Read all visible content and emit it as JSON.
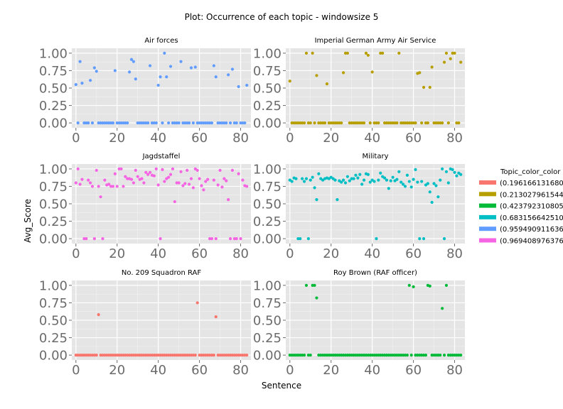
{
  "chart_data": {
    "type": "scatter",
    "title": "Plot: Occurrence of each topic - windowsize 5",
    "xlabel": "Sentence",
    "ylabel": "Avg_Score",
    "xlim": [
      -2,
      85
    ],
    "ylim": [
      -0.07,
      1.07
    ],
    "xticks": [
      "0",
      "20",
      "40",
      "60",
      "80"
    ],
    "yticks": [
      "0.00",
      "0.25",
      "0.50",
      "0.75",
      "1.00"
    ],
    "legend": {
      "title": "Topic_color_color",
      "entries": [
        {
          "label": "(0.196166131680",
          "color": "#f8766d"
        },
        {
          "label": "(0.213027961544",
          "color": "#b79f00"
        },
        {
          "label": "(0.423792310805",
          "color": "#00ba38"
        },
        {
          "label": "(0.683156642510",
          "color": "#00bfc4"
        },
        {
          "label": "(0.959490911636",
          "color": "#619cff"
        },
        {
          "label": "(0.969408976376",
          "color": "#f564e3"
        }
      ]
    },
    "panels": [
      {
        "title": "Air forces",
        "color": "#619cff",
        "x": [
          0,
          1,
          2,
          3,
          4,
          5,
          6,
          7,
          8,
          9,
          10,
          11,
          12,
          13,
          14,
          15,
          16,
          17,
          18,
          19,
          20,
          21,
          22,
          23,
          24,
          25,
          26,
          27,
          28,
          29,
          30,
          31,
          32,
          33,
          34,
          35,
          36,
          37,
          38,
          39,
          40,
          41,
          42,
          43,
          44,
          45,
          46,
          47,
          48,
          49,
          50,
          51,
          52,
          53,
          54,
          55,
          56,
          57,
          58,
          59,
          60,
          61,
          62,
          63,
          64,
          65,
          66,
          67,
          68,
          69,
          70,
          71,
          72,
          73,
          74,
          75,
          76,
          77,
          78,
          79,
          80,
          81,
          82,
          83
        ],
        "y": [
          0.55,
          0,
          0.88,
          0.57,
          0,
          0,
          0,
          0.61,
          0,
          0.79,
          0.74,
          0,
          0,
          0,
          0,
          0,
          0,
          0,
          0,
          0.75,
          0,
          0,
          0,
          0,
          0,
          0,
          0.73,
          0.91,
          0.88,
          0.63,
          0,
          0,
          0,
          0,
          0,
          0,
          0.82,
          0,
          0,
          0,
          0.54,
          0.66,
          0,
          1.0,
          0.66,
          0,
          0.81,
          0,
          0,
          0,
          0,
          0.88,
          0,
          0,
          0,
          0,
          0.79,
          0,
          0.8,
          0,
          0,
          0,
          0,
          0,
          0,
          0,
          0,
          0.82,
          0.66,
          0,
          0,
          0,
          0,
          0,
          0.69,
          0,
          0.77,
          0,
          0,
          0.52,
          0,
          0,
          0,
          0.54
        ]
      },
      {
        "title": "Imperial German Army Air Service",
        "color": "#b79f00",
        "x": [
          0,
          1,
          2,
          3,
          4,
          5,
          6,
          7,
          8,
          9,
          10,
          11,
          12,
          13,
          14,
          15,
          16,
          17,
          18,
          19,
          20,
          21,
          22,
          23,
          24,
          25,
          26,
          27,
          28,
          29,
          30,
          31,
          32,
          33,
          34,
          35,
          36,
          37,
          38,
          39,
          40,
          41,
          42,
          43,
          44,
          45,
          46,
          47,
          48,
          49,
          50,
          51,
          52,
          53,
          54,
          55,
          56,
          57,
          58,
          59,
          60,
          61,
          62,
          63,
          64,
          65,
          66,
          67,
          68,
          69,
          70,
          71,
          72,
          73,
          74,
          75,
          76,
          77,
          78,
          79,
          80,
          81,
          82,
          83
        ],
        "y": [
          0.6,
          0,
          0,
          0,
          0,
          0,
          0,
          0,
          1.0,
          0,
          0,
          1.0,
          0,
          0.68,
          0,
          0,
          0,
          0,
          0.56,
          0,
          0,
          0,
          0,
          0,
          0,
          0,
          0.72,
          1.0,
          1.0,
          0,
          0,
          0,
          0,
          0,
          0,
          0,
          0,
          1.0,
          0.97,
          0,
          0.73,
          0,
          0,
          0,
          1.0,
          1.0,
          0,
          0,
          0,
          0,
          0,
          0,
          0,
          1.0,
          0,
          0,
          0,
          0,
          0,
          0,
          0,
          0,
          0.71,
          0.72,
          0,
          0.51,
          0,
          0,
          0.51,
          0.8,
          0,
          0,
          0,
          0,
          0,
          0.87,
          1.0,
          0,
          0.92,
          1.0,
          1.0,
          0,
          0,
          0.87
        ]
      },
      {
        "title": "Jagdstaffel",
        "color": "#f564e3",
        "x": [
          0,
          1,
          2,
          3,
          4,
          5,
          6,
          7,
          8,
          9,
          10,
          11,
          12,
          13,
          14,
          15,
          16,
          17,
          18,
          19,
          20,
          21,
          22,
          23,
          24,
          25,
          26,
          27,
          28,
          29,
          30,
          31,
          32,
          33,
          34,
          35,
          36,
          37,
          38,
          39,
          40,
          41,
          42,
          43,
          44,
          45,
          46,
          47,
          48,
          49,
          50,
          51,
          52,
          53,
          54,
          55,
          56,
          57,
          58,
          59,
          60,
          61,
          62,
          63,
          64,
          65,
          66,
          67,
          68,
          69,
          70,
          71,
          72,
          73,
          74,
          75,
          76,
          77,
          78,
          79,
          80,
          81,
          82,
          83
        ],
        "y": [
          0.8,
          1.0,
          0.78,
          0.85,
          0,
          0,
          0.84,
          0.8,
          0.75,
          0,
          0.98,
          0.75,
          0.6,
          0,
          0.84,
          0.77,
          0.78,
          0.75,
          0.75,
          0.93,
          0.75,
          1.0,
          1.0,
          0.75,
          0.89,
          0.86,
          0.86,
          0.85,
          0.8,
          0.98,
          0.89,
          0.85,
          0.86,
          0.8,
          0.95,
          0.92,
          0.95,
          0.91,
          0.9,
          1.0,
          0.77,
          0,
          0.99,
          0.82,
          0.86,
          0.88,
          0.92,
          1.0,
          0.53,
          0.8,
          0.8,
          0.96,
          0.76,
          0.79,
          0.98,
          0.78,
          0.86,
          0.73,
          1.0,
          0.98,
          0.86,
          0.76,
          0.7,
          0.82,
          0.85,
          0,
          0,
          0.84,
          0,
          0.77,
          0.98,
          0.74,
          0.86,
          0.83,
          0.56,
          0,
          0.98,
          0,
          0,
          0.93,
          0,
          0.84,
          0.76,
          0.75
        ]
      },
      {
        "title": "Military",
        "color": "#00bfc4",
        "x": [
          0,
          1,
          2,
          3,
          4,
          5,
          6,
          7,
          8,
          9,
          10,
          11,
          12,
          13,
          14,
          15,
          16,
          17,
          18,
          19,
          20,
          21,
          22,
          23,
          24,
          25,
          26,
          27,
          28,
          29,
          30,
          31,
          32,
          33,
          34,
          35,
          36,
          37,
          38,
          39,
          40,
          41,
          42,
          43,
          44,
          45,
          46,
          47,
          48,
          49,
          50,
          51,
          52,
          53,
          54,
          55,
          56,
          57,
          58,
          59,
          60,
          61,
          62,
          63,
          64,
          65,
          66,
          67,
          68,
          69,
          70,
          71,
          72,
          73,
          74,
          75,
          76,
          77,
          78,
          79,
          80,
          81,
          82,
          83
        ],
        "y": [
          0.84,
          0.82,
          0.87,
          0.86,
          0,
          0,
          0.86,
          0.82,
          0.86,
          0,
          0.84,
          0.88,
          0.73,
          0.56,
          0.93,
          0.86,
          0.84,
          0.86,
          0.87,
          0.86,
          0.88,
          0.86,
          0.84,
          0.56,
          0.83,
          0.81,
          0.84,
          0.8,
          0.89,
          0.83,
          0.86,
          0.86,
          0.91,
          0.87,
          0.92,
          0.78,
          0.84,
          0.93,
          0.92,
          0.81,
          0.84,
          0.82,
          0,
          0.84,
          0.94,
          0.89,
          0.87,
          0.84,
          0.72,
          0.83,
          0.88,
          0.83,
          0.85,
          0.96,
          0.81,
          0.78,
          0.75,
          0.91,
          0.82,
          0.74,
          0.85,
          0.99,
          0.81,
          0,
          0.82,
          0,
          0.77,
          0.79,
          0.67,
          0.52,
          0.79,
          0.76,
          0.6,
          0.84,
          1.0,
          0,
          0.96,
          0.8,
          1.0,
          0.99,
          0.95,
          0.9,
          0.94,
          0.92
        ]
      },
      {
        "title": "No. 209 Squadron RAF",
        "color": "#f8766d",
        "x": [
          0,
          1,
          2,
          3,
          4,
          5,
          6,
          7,
          8,
          9,
          10,
          11,
          12,
          13,
          14,
          15,
          16,
          17,
          18,
          19,
          20,
          21,
          22,
          23,
          24,
          25,
          26,
          27,
          28,
          29,
          30,
          31,
          32,
          33,
          34,
          35,
          36,
          37,
          38,
          39,
          40,
          41,
          42,
          43,
          44,
          45,
          46,
          47,
          48,
          49,
          50,
          51,
          52,
          53,
          54,
          55,
          56,
          57,
          58,
          59,
          60,
          61,
          62,
          63,
          64,
          65,
          66,
          67,
          68,
          69,
          70,
          71,
          72,
          73,
          74,
          75,
          76,
          77,
          78,
          79,
          80,
          81,
          82,
          83
        ],
        "y": [
          0,
          0,
          0,
          0,
          0,
          0,
          0,
          0,
          0,
          0,
          0,
          0.58,
          0,
          0,
          0,
          0,
          0,
          0,
          0,
          0,
          0,
          0,
          0,
          0,
          0,
          0,
          0,
          0,
          0,
          0,
          0,
          0,
          0,
          0,
          0,
          0,
          0,
          0,
          0,
          0,
          0,
          0,
          0,
          0,
          0,
          0,
          0,
          0,
          0,
          0,
          0,
          0,
          0,
          0,
          0,
          0,
          0,
          0,
          0,
          0.75,
          0,
          0,
          0,
          0,
          0,
          0,
          0,
          0,
          0.55,
          0,
          0,
          0,
          0,
          0,
          0,
          0,
          0,
          0,
          0,
          0,
          0,
          0,
          0,
          0
        ]
      },
      {
        "title": "Roy Brown (RAF officer)",
        "color": "#00ba38",
        "x": [
          0,
          1,
          2,
          3,
          4,
          5,
          6,
          7,
          8,
          9,
          10,
          11,
          12,
          13,
          14,
          15,
          16,
          17,
          18,
          19,
          20,
          21,
          22,
          23,
          24,
          25,
          26,
          27,
          28,
          29,
          30,
          31,
          32,
          33,
          34,
          35,
          36,
          37,
          38,
          39,
          40,
          41,
          42,
          43,
          44,
          45,
          46,
          47,
          48,
          49,
          50,
          51,
          52,
          53,
          54,
          55,
          56,
          57,
          58,
          59,
          60,
          61,
          62,
          63,
          64,
          65,
          66,
          67,
          68,
          69,
          70,
          71,
          72,
          73,
          74,
          75,
          76,
          77,
          78,
          79,
          80,
          81,
          82,
          83
        ],
        "y": [
          0,
          0,
          0,
          0,
          0,
          0,
          0,
          0,
          1.0,
          0,
          0,
          1.0,
          1.0,
          0.82,
          0,
          0,
          0,
          0,
          0,
          0,
          0,
          0,
          0,
          0,
          0,
          0,
          0,
          0,
          0,
          0,
          0,
          0,
          0,
          0,
          0,
          0,
          0,
          0,
          0,
          0,
          0,
          0,
          0,
          0,
          0,
          0,
          0,
          0,
          0,
          0,
          0,
          0,
          0,
          0,
          0,
          0,
          0,
          0,
          1.0,
          0,
          0.98,
          0,
          0,
          0,
          0,
          0,
          0,
          1.0,
          0.99,
          0,
          0,
          0,
          0,
          0,
          0.67,
          0,
          1.0,
          0,
          0,
          0,
          0,
          0,
          0,
          0
        ]
      }
    ]
  }
}
